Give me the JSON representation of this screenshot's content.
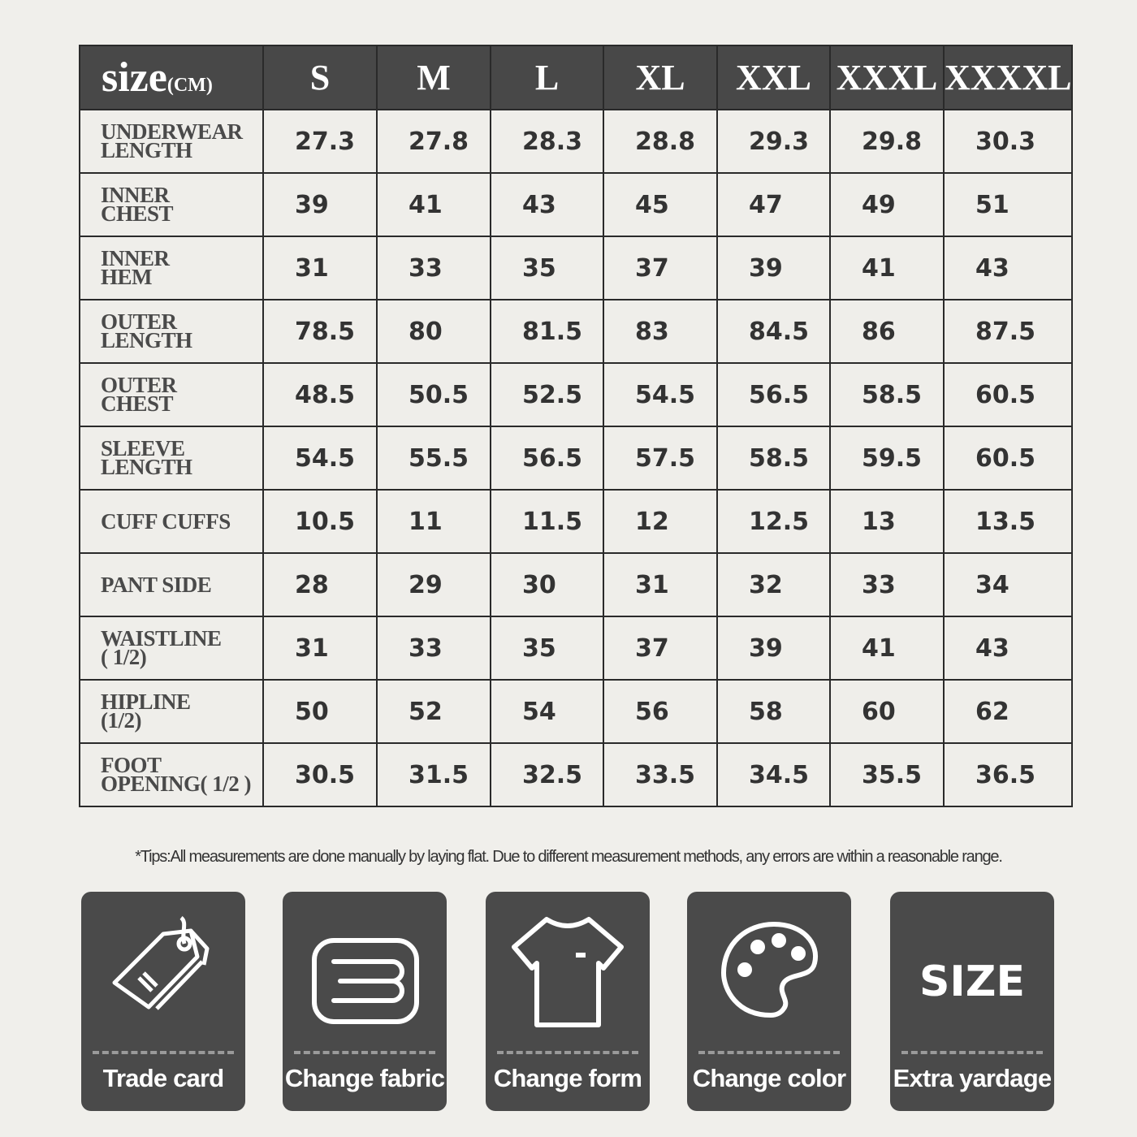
{
  "table": {
    "corner_label": "size",
    "corner_unit": "(CM)",
    "sizes": [
      "S",
      "M",
      "L",
      "XL",
      "XXL",
      "XXXL",
      "XXXXL"
    ],
    "rows": [
      {
        "label": "UNDERWEAR\nLENGTH",
        "values": [
          "27.3",
          "27.8",
          "28.3",
          "28.8",
          "29.3",
          "29.8",
          "30.3"
        ]
      },
      {
        "label": "INNER\nCHEST",
        "values": [
          "39",
          "41",
          "43",
          "45",
          "47",
          "49",
          "51"
        ]
      },
      {
        "label": "INNER\nHEM",
        "values": [
          "31",
          "33",
          "35",
          "37",
          "39",
          "41",
          "43"
        ]
      },
      {
        "label": "OUTER\nLENGTH",
        "values": [
          "78.5",
          "80",
          "81.5",
          "83",
          "84.5",
          "86",
          "87.5"
        ]
      },
      {
        "label": "OUTER\nCHEST",
        "values": [
          "48.5",
          "50.5",
          "52.5",
          "54.5",
          "56.5",
          "58.5",
          "60.5"
        ]
      },
      {
        "label": "SLEEVE\nLENGTH",
        "values": [
          "54.5",
          "55.5",
          "56.5",
          "57.5",
          "58.5",
          "59.5",
          "60.5"
        ]
      },
      {
        "label": "CUFF CUFFS",
        "values": [
          "10.5",
          "11",
          "11.5",
          "12",
          "12.5",
          "13",
          "13.5"
        ]
      },
      {
        "label": "PANT SIDE",
        "values": [
          "28",
          "29",
          "30",
          "31",
          "32",
          "33",
          "34"
        ]
      },
      {
        "label": "WAISTLINE\n( 1/2)",
        "values": [
          "31",
          "33",
          "35",
          "37",
          "39",
          "41",
          "43"
        ]
      },
      {
        "label": "HIPLINE\n(1/2)",
        "values": [
          "50",
          "52",
          "54",
          "56",
          "58",
          "60",
          "62"
        ]
      },
      {
        "label": "FOOT\nOPENING( 1/2 )",
        "values": [
          "30.5",
          "31.5",
          "32.5",
          "33.5",
          "34.5",
          "35.5",
          "36.5"
        ]
      }
    ]
  },
  "tip": "*Tips:All measurements are done manually by laying flat. Due to different measurement methods, any errors are within a reasonable range.",
  "cards": [
    {
      "label": "Trade card",
      "icon": "tag-icon"
    },
    {
      "label": "Change fabric",
      "icon": "fabric-icon"
    },
    {
      "label": "Change form",
      "icon": "tshirt-icon"
    },
    {
      "label": "Change color",
      "icon": "palette-icon"
    },
    {
      "label": "Extra yardage",
      "icon": "size-icon",
      "icon_text": "SIZE"
    }
  ],
  "colors": {
    "background": "#f0efeb",
    "header": "#484848",
    "card": "#4a4a4a"
  }
}
